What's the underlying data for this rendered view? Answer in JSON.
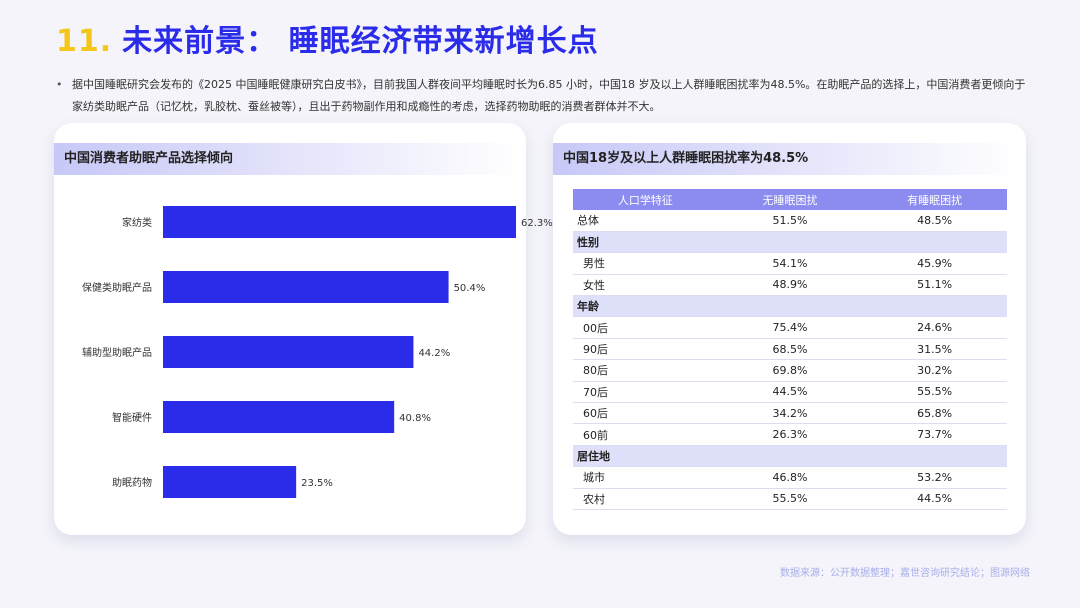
{
  "header": {
    "number": "11.",
    "title": "未来前景： 睡眠经济带来新增长点"
  },
  "intro": {
    "bullet": "•",
    "text": "据中国睡眠研究会发布的《2025 中国睡眠健康研究白皮书》，目前我国人群夜间平均睡眠时长为6.85 小时，中国18 岁及以上人群睡眠困扰率为48.5%。在助眠产品的选择上，中国消费者更倾向于家纺类助眠产品（记忆枕，乳胶枕、蚕丝被等），且出于药物副作用和成瘾性的考虑，选择药物助眠的消费者群体并不大。"
  },
  "left_card": {
    "title": "中国消费者助眠产品选择倾向"
  },
  "right_card": {
    "title": "中国18岁及以上人群睡眠困扰率为48.5%",
    "columns": [
      "人口学特征",
      "无睡眠困扰",
      "有睡眠困扰"
    ],
    "rows": [
      {
        "type": "total",
        "label": "总体",
        "no": "51.5%",
        "yes": "48.5%"
      },
      {
        "type": "group",
        "label": "性别"
      },
      {
        "type": "row",
        "label": "男性",
        "no": "54.1%",
        "yes": "45.9%"
      },
      {
        "type": "row",
        "label": "女性",
        "no": "48.9%",
        "yes": "51.1%"
      },
      {
        "type": "group",
        "label": "年龄"
      },
      {
        "type": "row",
        "label": "00后",
        "no": "75.4%",
        "yes": "24.6%"
      },
      {
        "type": "row",
        "label": "90后",
        "no": "68.5%",
        "yes": "31.5%"
      },
      {
        "type": "row",
        "label": "80后",
        "no": "69.8%",
        "yes": "30.2%"
      },
      {
        "type": "row",
        "label": "70后",
        "no": "44.5%",
        "yes": "55.5%"
      },
      {
        "type": "row",
        "label": "60后",
        "no": "34.2%",
        "yes": "65.8%"
      },
      {
        "type": "row",
        "label": "60前",
        "no": "26.3%",
        "yes": "73.7%"
      },
      {
        "type": "group",
        "label": "居住地"
      },
      {
        "type": "row",
        "label": "城市",
        "no": "46.8%",
        "yes": "53.2%"
      },
      {
        "type": "row",
        "label": "农村",
        "no": "55.5%",
        "yes": "44.5%"
      }
    ]
  },
  "source": "数据来源：公开数据整理；嘉世咨询研究结论；图源网络",
  "colors": {
    "bar": "#2b2bea",
    "title_number": "#f5c518",
    "title_text": "#2b2bea",
    "table_header": "#8b8bf0",
    "group_row": "#dedff9"
  },
  "chart_data": {
    "type": "bar",
    "orientation": "horizontal",
    "title": "中国消费者助眠产品选择倾向",
    "categories": [
      "家纺类",
      "保健类助眠产品",
      "辅助型助眠产品",
      "智能硬件",
      "助眠药物"
    ],
    "values": [
      62.3,
      50.4,
      44.2,
      40.8,
      23.5
    ],
    "value_labels": [
      "62.3%",
      "50.4%",
      "44.2%",
      "40.8%",
      "23.5%"
    ],
    "xlim": [
      0,
      70
    ],
    "grid": false,
    "legend": "none"
  },
  "table_data": {
    "type": "table",
    "title": "中国18岁及以上人群睡眠困扰率为48.5%"
  }
}
